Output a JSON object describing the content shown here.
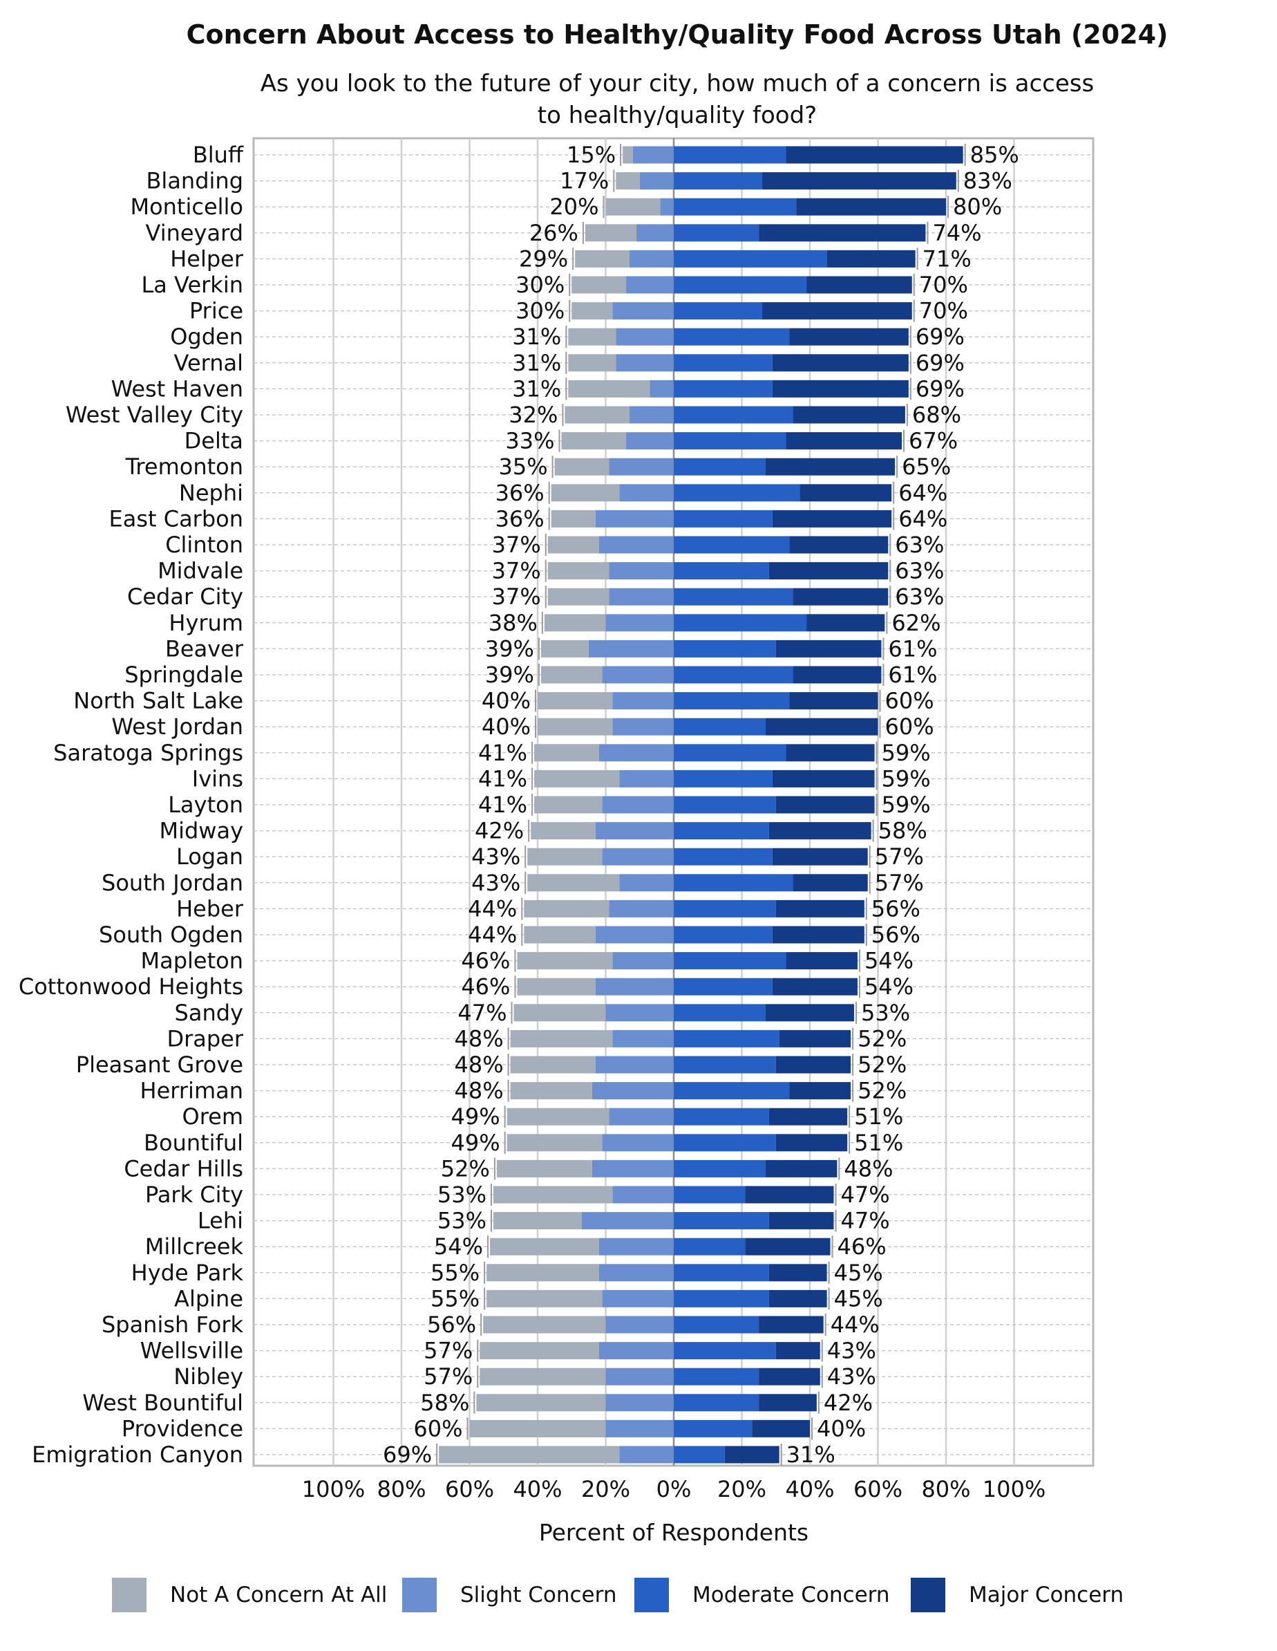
{
  "chart_data": {
    "type": "bar",
    "title": "Concern About Access to Healthy/Quality Food Across Utah (2024)",
    "subtitle": "As you look to the future of your city, how much of a concern is access to healthy/quality food?",
    "xlabel": "Percent of Respondents",
    "ylabel": "",
    "x_tick_labels": [
      "100%",
      "80%",
      "60%",
      "40%",
      "20%",
      "0%",
      "20%",
      "40%",
      "60%",
      "80%",
      "100%"
    ],
    "xlim": [
      -100,
      100
    ],
    "grid": true,
    "legend_position": "bottom",
    "colors": {
      "Not A Concern At All": "#a4afbb",
      "Slight Concern": "#6b8ed0",
      "Moderate Concern": "#2760c4",
      "Major Concern": "#143b85"
    },
    "categories": [
      "Bluff",
      "Blanding",
      "Monticello",
      "Vineyard",
      "Helper",
      "La Verkin",
      "Price",
      "Ogden",
      "Vernal",
      "West Haven",
      "West Valley City",
      "Delta",
      "Tremonton",
      "Nephi",
      "East Carbon",
      "Clinton",
      "Midvale",
      "Cedar City",
      "Hyrum",
      "Beaver",
      "Springdale",
      "North Salt Lake",
      "West Jordan",
      "Saratoga Springs",
      "Ivins",
      "Layton",
      "Midway",
      "Logan",
      "South Jordan",
      "Heber",
      "South Ogden",
      "Mapleton",
      "Cottonwood Heights",
      "Sandy",
      "Draper",
      "Pleasant Grove",
      "Herriman",
      "Orem",
      "Bountiful",
      "Cedar Hills",
      "Park City",
      "Lehi",
      "Millcreek",
      "Hyde Park",
      "Alpine",
      "Spanish Fork",
      "Wellsville",
      "Nibley",
      "West Bountiful",
      "Providence",
      "Emigration Canyon"
    ],
    "series": [
      {
        "name": "Not A Concern At All",
        "side": "left",
        "values": [
          3,
          7,
          16,
          15,
          16,
          16,
          12,
          14,
          14,
          24,
          19,
          19,
          16,
          20,
          13,
          15,
          18,
          18,
          18,
          14,
          18,
          22,
          22,
          19,
          25,
          20,
          19,
          22,
          27,
          25,
          21,
          28,
          23,
          27,
          30,
          25,
          24,
          30,
          28,
          28,
          35,
          26,
          32,
          33,
          34,
          36,
          35,
          37,
          38,
          40,
          53
        ]
      },
      {
        "name": "Slight Concern",
        "side": "left",
        "values": [
          12,
          10,
          4,
          11,
          13,
          14,
          18,
          17,
          17,
          7,
          13,
          14,
          19,
          16,
          23,
          22,
          19,
          19,
          20,
          25,
          21,
          18,
          18,
          22,
          16,
          21,
          23,
          21,
          16,
          19,
          23,
          18,
          23,
          20,
          18,
          23,
          24,
          19,
          21,
          24,
          18,
          27,
          22,
          22,
          21,
          20,
          22,
          20,
          20,
          20,
          16
        ]
      },
      {
        "name": "Moderate Concern",
        "side": "right",
        "values": [
          33,
          26,
          36,
          25,
          45,
          39,
          26,
          34,
          29,
          29,
          35,
          33,
          27,
          37,
          29,
          34,
          28,
          35,
          39,
          30,
          35,
          34,
          27,
          33,
          29,
          30,
          28,
          29,
          35,
          30,
          29,
          33,
          29,
          27,
          31,
          30,
          34,
          28,
          30,
          27,
          21,
          28,
          21,
          28,
          28,
          25,
          30,
          25,
          25,
          23,
          15
        ]
      },
      {
        "name": "Major Concern",
        "side": "right",
        "values": [
          52,
          57,
          44,
          49,
          26,
          31,
          44,
          35,
          40,
          40,
          33,
          34,
          38,
          27,
          35,
          29,
          35,
          28,
          23,
          31,
          26,
          26,
          33,
          26,
          30,
          29,
          30,
          28,
          22,
          26,
          27,
          21,
          25,
          26,
          21,
          22,
          18,
          23,
          21,
          21,
          26,
          19,
          25,
          17,
          17,
          19,
          13,
          18,
          17,
          17,
          16
        ]
      }
    ],
    "left_totals": [
      "15%",
      "17%",
      "20%",
      "26%",
      "29%",
      "30%",
      "30%",
      "31%",
      "31%",
      "31%",
      "32%",
      "33%",
      "35%",
      "36%",
      "36%",
      "37%",
      "37%",
      "37%",
      "38%",
      "39%",
      "39%",
      "40%",
      "40%",
      "41%",
      "41%",
      "41%",
      "42%",
      "43%",
      "43%",
      "44%",
      "44%",
      "46%",
      "46%",
      "47%",
      "48%",
      "48%",
      "48%",
      "49%",
      "49%",
      "52%",
      "53%",
      "53%",
      "54%",
      "55%",
      "55%",
      "56%",
      "57%",
      "57%",
      "58%",
      "60%",
      "69%"
    ],
    "right_totals": [
      "85%",
      "83%",
      "80%",
      "74%",
      "71%",
      "70%",
      "70%",
      "69%",
      "69%",
      "69%",
      "68%",
      "67%",
      "65%",
      "64%",
      "64%",
      "63%",
      "63%",
      "63%",
      "62%",
      "61%",
      "61%",
      "60%",
      "60%",
      "59%",
      "59%",
      "59%",
      "58%",
      "57%",
      "57%",
      "56%",
      "56%",
      "54%",
      "54%",
      "53%",
      "52%",
      "52%",
      "52%",
      "51%",
      "51%",
      "48%",
      "47%",
      "47%",
      "46%",
      "45%",
      "45%",
      "44%",
      "43%",
      "43%",
      "42%",
      "40%",
      "31%"
    ]
  },
  "legend": {
    "items": [
      {
        "label": "Not A Concern At All",
        "color": "#a4afbb"
      },
      {
        "label": "Slight Concern",
        "color": "#6b8ed0"
      },
      {
        "label": "Moderate Concern",
        "color": "#2760c4"
      },
      {
        "label": "Major Concern",
        "color": "#143b85"
      }
    ]
  }
}
